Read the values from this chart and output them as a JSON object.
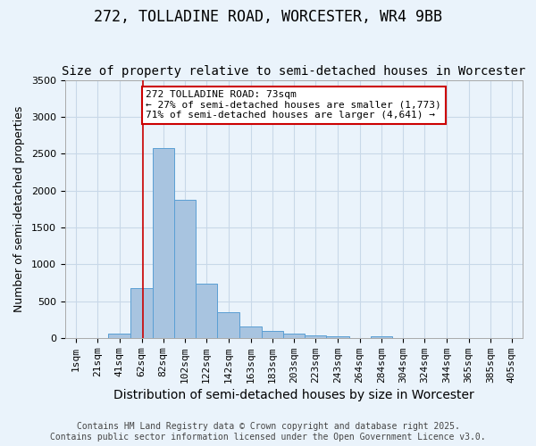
{
  "title": "272, TOLLADINE ROAD, WORCESTER, WR4 9BB",
  "subtitle": "Size of property relative to semi-detached houses in Worcester",
  "xlabel": "Distribution of semi-detached houses by size in Worcester",
  "ylabel": "Number of semi-detached properties",
  "bar_color": "#a8c4e0",
  "bar_edge_color": "#5a9fd4",
  "categories": [
    "1sqm",
    "21sqm",
    "41sqm",
    "62sqm",
    "82sqm",
    "102sqm",
    "122sqm",
    "142sqm",
    "163sqm",
    "183sqm",
    "203sqm",
    "223sqm",
    "243sqm",
    "264sqm",
    "284sqm",
    "304sqm",
    "324sqm",
    "344sqm",
    "365sqm",
    "385sqm",
    "405sqm"
  ],
  "values": [
    0,
    0,
    55,
    670,
    2580,
    1870,
    740,
    345,
    150,
    90,
    55,
    30,
    20,
    0,
    25,
    0,
    0,
    0,
    0,
    0,
    0
  ],
  "bin_edges": [
    1,
    21,
    41,
    62,
    82,
    102,
    122,
    142,
    163,
    183,
    203,
    223,
    243,
    264,
    284,
    304,
    324,
    344,
    365,
    385,
    405
  ],
  "bin_width": [
    20,
    20,
    21,
    20,
    20,
    20,
    20,
    21,
    20,
    20,
    20,
    20,
    21,
    20,
    20,
    20,
    20,
    21,
    20,
    20,
    20
  ],
  "property_value": 73,
  "annotation_text": "272 TOLLADINE ROAD: 73sqm\n← 27% of semi-detached houses are smaller (1,773)\n71% of semi-detached houses are larger (4,641) →",
  "annotation_box_color": "#ffffff",
  "annotation_box_edge_color": "#cc0000",
  "vline_color": "#cc0000",
  "ylim": [
    0,
    3500
  ],
  "yticks": [
    0,
    500,
    1000,
    1500,
    2000,
    2500,
    3000,
    3500
  ],
  "grid_color": "#c8d8e8",
  "background_color": "#eaf3fb",
  "footer_line1": "Contains HM Land Registry data © Crown copyright and database right 2025.",
  "footer_line2": "Contains public sector information licensed under the Open Government Licence v3.0.",
  "title_fontsize": 12,
  "subtitle_fontsize": 10,
  "xlabel_fontsize": 10,
  "ylabel_fontsize": 9,
  "tick_fontsize": 8,
  "annotation_fontsize": 8,
  "footer_fontsize": 7
}
